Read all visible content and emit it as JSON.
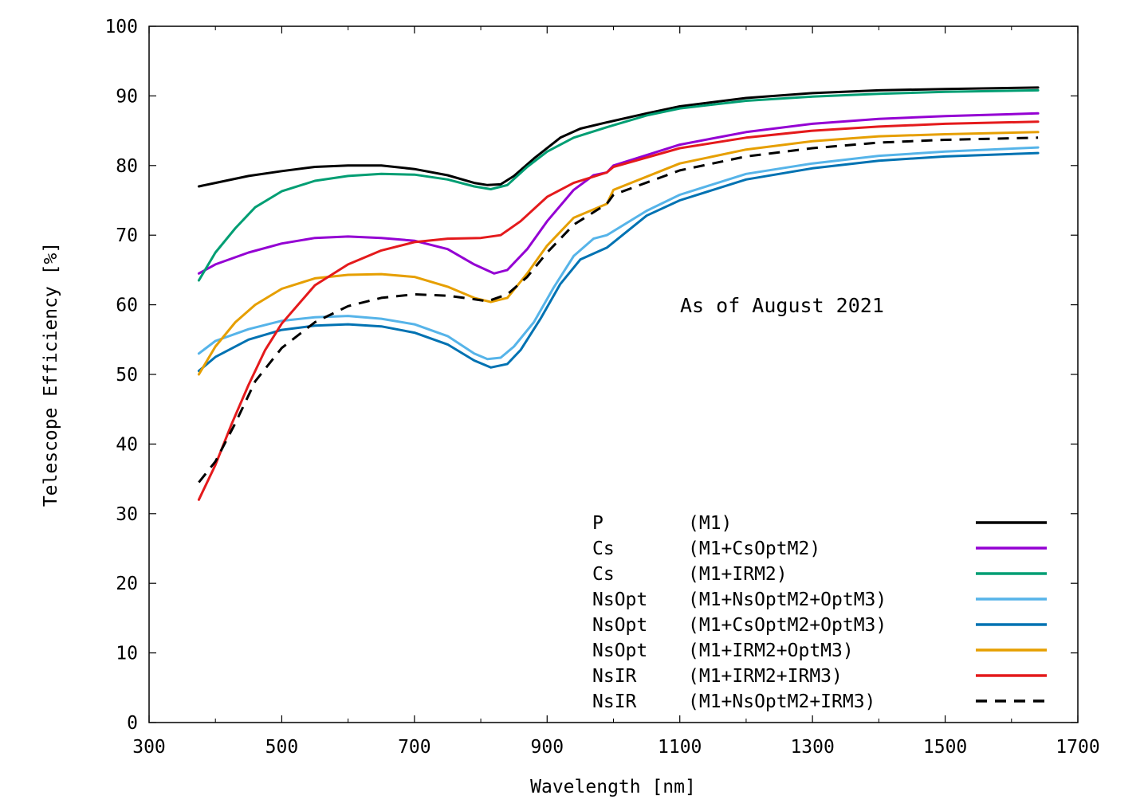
{
  "chart_data": {
    "type": "line",
    "title": "",
    "xlabel": "Wavelength [nm]",
    "ylabel": "Telescope Efficiency [%]",
    "xlim": [
      300,
      1700
    ],
    "ylim": [
      0,
      100
    ],
    "xticks": [
      300,
      500,
      700,
      900,
      1100,
      1300,
      1500,
      1700
    ],
    "yticks": [
      0,
      10,
      20,
      30,
      40,
      50,
      60,
      70,
      80,
      90,
      100
    ],
    "annotation": "As of August 2021",
    "legend_position": "bottom-right",
    "series": [
      {
        "name": "P (M1)",
        "focus": "P",
        "config": "(M1)",
        "color": "#000000",
        "dash": "solid",
        "points": [
          [
            375,
            77
          ],
          [
            400,
            77.5
          ],
          [
            450,
            78.5
          ],
          [
            500,
            79.2
          ],
          [
            550,
            79.8
          ],
          [
            600,
            80
          ],
          [
            650,
            80
          ],
          [
            700,
            79.5
          ],
          [
            750,
            78.6
          ],
          [
            790,
            77.5
          ],
          [
            810,
            77.2
          ],
          [
            830,
            77.3
          ],
          [
            850,
            78.5
          ],
          [
            880,
            81
          ],
          [
            920,
            84
          ],
          [
            950,
            85.3
          ],
          [
            990,
            86.2
          ],
          [
            1050,
            87.5
          ],
          [
            1100,
            88.5
          ],
          [
            1200,
            89.7
          ],
          [
            1300,
            90.4
          ],
          [
            1400,
            90.8
          ],
          [
            1500,
            91
          ],
          [
            1640,
            91.2
          ]
        ]
      },
      {
        "name": "Cs (M1+CsOptM2)",
        "focus": "Cs",
        "config": "(M1+CsOptM2)",
        "color": "#9400d3",
        "dash": "solid",
        "points": [
          [
            375,
            64.5
          ],
          [
            400,
            65.8
          ],
          [
            450,
            67.5
          ],
          [
            500,
            68.8
          ],
          [
            550,
            69.6
          ],
          [
            600,
            69.8
          ],
          [
            650,
            69.6
          ],
          [
            700,
            69.2
          ],
          [
            750,
            68
          ],
          [
            790,
            65.8
          ],
          [
            820,
            64.5
          ],
          [
            840,
            65
          ],
          [
            870,
            68
          ],
          [
            900,
            72
          ],
          [
            940,
            76.5
          ],
          [
            970,
            78.6
          ],
          [
            990,
            79
          ],
          [
            1000,
            80
          ],
          [
            1100,
            83
          ],
          [
            1200,
            84.8
          ],
          [
            1300,
            86
          ],
          [
            1400,
            86.7
          ],
          [
            1500,
            87.1
          ],
          [
            1640,
            87.5
          ]
        ]
      },
      {
        "name": "Cs (M1+IRM2)",
        "focus": "Cs",
        "config": "(M1+IRM2)",
        "color": "#009e73",
        "dash": "solid",
        "points": [
          [
            375,
            63.5
          ],
          [
            400,
            67.5
          ],
          [
            430,
            71
          ],
          [
            460,
            74
          ],
          [
            500,
            76.3
          ],
          [
            550,
            77.8
          ],
          [
            600,
            78.5
          ],
          [
            650,
            78.8
          ],
          [
            700,
            78.7
          ],
          [
            750,
            78
          ],
          [
            790,
            77
          ],
          [
            815,
            76.6
          ],
          [
            840,
            77.2
          ],
          [
            870,
            79.8
          ],
          [
            900,
            82
          ],
          [
            940,
            84
          ],
          [
            990,
            85.5
          ],
          [
            1050,
            87.2
          ],
          [
            1100,
            88.2
          ],
          [
            1200,
            89.3
          ],
          [
            1300,
            89.9
          ],
          [
            1400,
            90.3
          ],
          [
            1500,
            90.6
          ],
          [
            1640,
            90.8
          ]
        ]
      },
      {
        "name": "NsOpt (M1+NsOptM2+OptM3)",
        "focus": "NsOpt",
        "config": "(M1+NsOptM2+OptM3)",
        "color": "#56b4e9",
        "dash": "solid",
        "points": [
          [
            375,
            53
          ],
          [
            400,
            54.8
          ],
          [
            450,
            56.5
          ],
          [
            500,
            57.7
          ],
          [
            550,
            58.2
          ],
          [
            600,
            58.4
          ],
          [
            650,
            58
          ],
          [
            700,
            57.2
          ],
          [
            750,
            55.5
          ],
          [
            790,
            53
          ],
          [
            810,
            52.2
          ],
          [
            830,
            52.4
          ],
          [
            850,
            54
          ],
          [
            880,
            57.5
          ],
          [
            910,
            62.5
          ],
          [
            940,
            67
          ],
          [
            970,
            69.5
          ],
          [
            990,
            70
          ],
          [
            1050,
            73.5
          ],
          [
            1100,
            75.8
          ],
          [
            1200,
            78.8
          ],
          [
            1300,
            80.3
          ],
          [
            1400,
            81.4
          ],
          [
            1500,
            82
          ],
          [
            1640,
            82.6
          ]
        ]
      },
      {
        "name": "NsOpt (M1+CsOptM2+OptM3)",
        "focus": "NsOpt",
        "config": "(M1+CsOptM2+OptM3)",
        "color": "#0072b2",
        "dash": "solid",
        "points": [
          [
            375,
            50.5
          ],
          [
            400,
            52.5
          ],
          [
            450,
            55
          ],
          [
            500,
            56.4
          ],
          [
            550,
            57
          ],
          [
            600,
            57.2
          ],
          [
            650,
            56.9
          ],
          [
            700,
            56
          ],
          [
            750,
            54.3
          ],
          [
            790,
            52
          ],
          [
            815,
            51
          ],
          [
            840,
            51.5
          ],
          [
            860,
            53.5
          ],
          [
            890,
            58
          ],
          [
            920,
            63
          ],
          [
            950,
            66.5
          ],
          [
            990,
            68.2
          ],
          [
            1050,
            72.8
          ],
          [
            1100,
            75
          ],
          [
            1200,
            78
          ],
          [
            1300,
            79.6
          ],
          [
            1400,
            80.7
          ],
          [
            1500,
            81.3
          ],
          [
            1640,
            81.8
          ]
        ]
      },
      {
        "name": "NsOpt (M1+IRM2+OptM3)",
        "focus": "NsOpt",
        "config": "(M1+IRM2+OptM3)",
        "color": "#e69f00",
        "dash": "solid",
        "points": [
          [
            375,
            50
          ],
          [
            400,
            54
          ],
          [
            430,
            57.5
          ],
          [
            460,
            60
          ],
          [
            500,
            62.3
          ],
          [
            550,
            63.8
          ],
          [
            600,
            64.3
          ],
          [
            650,
            64.4
          ],
          [
            700,
            64
          ],
          [
            750,
            62.6
          ],
          [
            790,
            61
          ],
          [
            815,
            60.4
          ],
          [
            840,
            61
          ],
          [
            870,
            64.5
          ],
          [
            900,
            68.5
          ],
          [
            940,
            72.5
          ],
          [
            990,
            74.5
          ],
          [
            1000,
            76.5
          ],
          [
            1100,
            80.3
          ],
          [
            1200,
            82.3
          ],
          [
            1300,
            83.5
          ],
          [
            1400,
            84.2
          ],
          [
            1500,
            84.5
          ],
          [
            1640,
            84.8
          ]
        ]
      },
      {
        "name": "NsIR (M1+IRM2+IRM3)",
        "focus": "NsIR",
        "config": "(M1+IRM2+IRM3)",
        "color": "#e41a1c",
        "dash": "solid",
        "points": [
          [
            375,
            32
          ],
          [
            400,
            37
          ],
          [
            425,
            43
          ],
          [
            450,
            48.5
          ],
          [
            475,
            53.5
          ],
          [
            500,
            57.3
          ],
          [
            550,
            62.8
          ],
          [
            600,
            65.8
          ],
          [
            650,
            67.8
          ],
          [
            700,
            69
          ],
          [
            750,
            69.5
          ],
          [
            800,
            69.6
          ],
          [
            830,
            70
          ],
          [
            860,
            72
          ],
          [
            900,
            75.5
          ],
          [
            940,
            77.5
          ],
          [
            990,
            79
          ],
          [
            1000,
            79.8
          ],
          [
            1100,
            82.5
          ],
          [
            1200,
            84
          ],
          [
            1300,
            85
          ],
          [
            1400,
            85.6
          ],
          [
            1500,
            86
          ],
          [
            1640,
            86.3
          ]
        ]
      },
      {
        "name": "NsIR (M1+NsOptM2+IRM3)",
        "focus": "NsIR",
        "config": "(M1+NsOptM2+IRM3)",
        "color": "#000000",
        "dash": "dashed",
        "points": [
          [
            375,
            34.5
          ],
          [
            400,
            37.5
          ],
          [
            430,
            43
          ],
          [
            460,
            49
          ],
          [
            500,
            53.8
          ],
          [
            550,
            57.5
          ],
          [
            600,
            59.8
          ],
          [
            650,
            61
          ],
          [
            700,
            61.5
          ],
          [
            750,
            61.3
          ],
          [
            790,
            60.8
          ],
          [
            810,
            60.5
          ],
          [
            840,
            61.5
          ],
          [
            870,
            64
          ],
          [
            900,
            67.5
          ],
          [
            940,
            71.5
          ],
          [
            990,
            74.5
          ],
          [
            1000,
            75.8
          ],
          [
            1100,
            79.3
          ],
          [
            1200,
            81.3
          ],
          [
            1300,
            82.5
          ],
          [
            1400,
            83.3
          ],
          [
            1500,
            83.7
          ],
          [
            1640,
            84
          ]
        ]
      }
    ]
  }
}
